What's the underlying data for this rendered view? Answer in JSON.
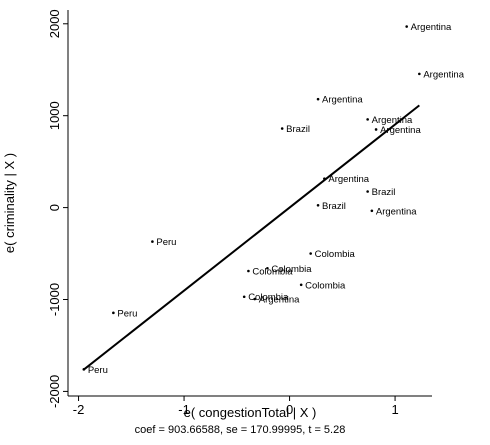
{
  "chart_data": {
    "type": "scatter",
    "xlabel": "e( congestionTotal | X )",
    "ylabel": "e( criminality | X )",
    "note": "coef = 903.66588, se = 170.99995, t = 5.28",
    "xlim": [
      -2.1,
      1.35
    ],
    "ylim": [
      -2050,
      2150
    ],
    "xticks": [
      -2,
      -1,
      0,
      1
    ],
    "xtick_labels": [
      "-2",
      "-1",
      "0",
      "1"
    ],
    "yticks": [
      -2000,
      -1000,
      0,
      1000,
      2000
    ],
    "ytick_labels": [
      "-2000",
      "-1000",
      "0",
      "1000",
      "2000"
    ],
    "fit_line": {
      "slope": 903.66588,
      "x": [
        -1.95,
        1.23
      ],
      "y": [
        -1762,
        1112
      ]
    },
    "points": [
      {
        "x": 1.11,
        "y": 1970,
        "label": "Argentina"
      },
      {
        "x": 1.23,
        "y": 1455,
        "label": "Argentina"
      },
      {
        "x": 0.27,
        "y": 1180,
        "label": "Argentina"
      },
      {
        "x": 0.74,
        "y": 960,
        "label": "Argentina"
      },
      {
        "x": 0.82,
        "y": 850,
        "label": "Argentina"
      },
      {
        "x": -0.07,
        "y": 860,
        "label": "Brazil"
      },
      {
        "x": 0.33,
        "y": 315,
        "label": "Argentina"
      },
      {
        "x": 0.74,
        "y": 175,
        "label": "Brazil"
      },
      {
        "x": 0.27,
        "y": 25,
        "label": "Brazil"
      },
      {
        "x": 0.78,
        "y": -35,
        "label": "Argentina"
      },
      {
        "x": -1.3,
        "y": -370,
        "label": "Peru"
      },
      {
        "x": 0.2,
        "y": -500,
        "label": "Colombia"
      },
      {
        "x": -0.21,
        "y": -660,
        "label": "Colombia"
      },
      {
        "x": -0.39,
        "y": -690,
        "label": "Colombia"
      },
      {
        "x": 0.11,
        "y": -840,
        "label": "Colombia"
      },
      {
        "x": -0.43,
        "y": -970,
        "label": "Colombia"
      },
      {
        "x": -0.33,
        "y": -995,
        "label": "Argentina"
      },
      {
        "x": -1.67,
        "y": -1145,
        "label": "Peru"
      },
      {
        "x": -1.95,
        "y": -1760,
        "label": "Peru"
      }
    ]
  }
}
